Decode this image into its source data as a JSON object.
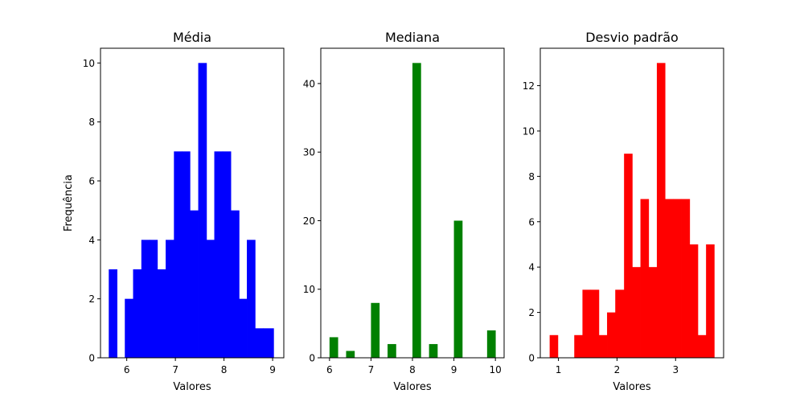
{
  "chart_data": [
    {
      "type": "bar",
      "title": "Média",
      "xlabel": "Valores",
      "ylabel": "Frequência",
      "color": "#0000ff",
      "xlim": [
        5.46,
        9.23
      ],
      "ylim": [
        0,
        10.5
      ],
      "xticks": [
        6,
        7,
        8,
        9
      ],
      "yticks": [
        0,
        2,
        4,
        6,
        8,
        10
      ],
      "bins": [
        {
          "x0": 5.63,
          "x1": 5.8,
          "count": 3
        },
        {
          "x0": 5.8,
          "x1": 5.96,
          "count": 0
        },
        {
          "x0": 5.96,
          "x1": 6.13,
          "count": 2
        },
        {
          "x0": 6.13,
          "x1": 6.3,
          "count": 3
        },
        {
          "x0": 6.3,
          "x1": 6.47,
          "count": 4
        },
        {
          "x0": 6.47,
          "x1": 6.63,
          "count": 4
        },
        {
          "x0": 6.63,
          "x1": 6.8,
          "count": 3
        },
        {
          "x0": 6.8,
          "x1": 6.97,
          "count": 4
        },
        {
          "x0": 6.97,
          "x1": 7.13,
          "count": 7
        },
        {
          "x0": 7.13,
          "x1": 7.3,
          "count": 7
        },
        {
          "x0": 7.3,
          "x1": 7.47,
          "count": 5
        },
        {
          "x0": 7.47,
          "x1": 7.64,
          "count": 10
        },
        {
          "x0": 7.64,
          "x1": 7.8,
          "count": 4
        },
        {
          "x0": 7.8,
          "x1": 7.97,
          "count": 7
        },
        {
          "x0": 7.97,
          "x1": 8.14,
          "count": 7
        },
        {
          "x0": 8.14,
          "x1": 8.31,
          "count": 5
        },
        {
          "x0": 8.31,
          "x1": 8.47,
          "count": 2
        },
        {
          "x0": 8.47,
          "x1": 8.64,
          "count": 4
        },
        {
          "x0": 8.64,
          "x1": 8.81,
          "count": 1
        },
        {
          "x0": 8.81,
          "x1": 9.02,
          "count": 1
        }
      ]
    },
    {
      "type": "bar",
      "title": "Mediana",
      "xlabel": "Valores",
      "ylabel": "",
      "color": "#008000",
      "xlim": [
        5.79,
        10.21
      ],
      "ylim": [
        0,
        45.15
      ],
      "xticks": [
        6,
        7,
        8,
        9,
        10
      ],
      "yticks": [
        0,
        10,
        20,
        30,
        40
      ],
      "bins": [
        {
          "x0": 6.0,
          "x1": 6.2,
          "count": 3
        },
        {
          "x0": 6.2,
          "x1": 6.4,
          "count": 0
        },
        {
          "x0": 6.4,
          "x1": 6.6,
          "count": 1
        },
        {
          "x0": 6.6,
          "x1": 6.8,
          "count": 0
        },
        {
          "x0": 6.8,
          "x1": 7.0,
          "count": 0
        },
        {
          "x0": 7.0,
          "x1": 7.2,
          "count": 8
        },
        {
          "x0": 7.2,
          "x1": 7.4,
          "count": 0
        },
        {
          "x0": 7.4,
          "x1": 7.6,
          "count": 2
        },
        {
          "x0": 7.6,
          "x1": 7.8,
          "count": 0
        },
        {
          "x0": 7.8,
          "x1": 8.0,
          "count": 0
        },
        {
          "x0": 8.0,
          "x1": 8.2,
          "count": 43
        },
        {
          "x0": 8.2,
          "x1": 8.4,
          "count": 0
        },
        {
          "x0": 8.4,
          "x1": 8.6,
          "count": 2
        },
        {
          "x0": 8.6,
          "x1": 8.8,
          "count": 0
        },
        {
          "x0": 8.8,
          "x1": 9.0,
          "count": 0
        },
        {
          "x0": 9.0,
          "x1": 9.2,
          "count": 20
        },
        {
          "x0": 9.2,
          "x1": 9.4,
          "count": 0
        },
        {
          "x0": 9.4,
          "x1": 9.6,
          "count": 0
        },
        {
          "x0": 9.6,
          "x1": 9.8,
          "count": 0
        },
        {
          "x0": 9.8,
          "x1": 10.0,
          "count": 4
        }
      ]
    },
    {
      "type": "bar",
      "title": "Desvio padrão",
      "xlabel": "Valores",
      "ylabel": "",
      "color": "#ff0000",
      "xlim": [
        0.69,
        3.82
      ],
      "ylim": [
        0,
        13.65
      ],
      "xticks": [
        1,
        2,
        3
      ],
      "yticks": [
        0,
        2,
        4,
        6,
        8,
        10,
        12
      ],
      "bins": [
        {
          "x0": 0.85,
          "x1": 0.99,
          "count": 1
        },
        {
          "x0": 0.99,
          "x1": 1.13,
          "count": 0
        },
        {
          "x0": 1.13,
          "x1": 1.27,
          "count": 0
        },
        {
          "x0": 1.27,
          "x1": 1.41,
          "count": 1
        },
        {
          "x0": 1.41,
          "x1": 1.55,
          "count": 3
        },
        {
          "x0": 1.55,
          "x1": 1.69,
          "count": 3
        },
        {
          "x0": 1.69,
          "x1": 1.83,
          "count": 1
        },
        {
          "x0": 1.83,
          "x1": 1.97,
          "count": 2
        },
        {
          "x0": 1.97,
          "x1": 2.12,
          "count": 3
        },
        {
          "x0": 2.12,
          "x1": 2.26,
          "count": 9
        },
        {
          "x0": 2.26,
          "x1": 2.4,
          "count": 4
        },
        {
          "x0": 2.4,
          "x1": 2.54,
          "count": 7
        },
        {
          "x0": 2.54,
          "x1": 2.68,
          "count": 4
        },
        {
          "x0": 2.68,
          "x1": 2.82,
          "count": 13
        },
        {
          "x0": 2.82,
          "x1": 2.96,
          "count": 7
        },
        {
          "x0": 2.96,
          "x1": 3.1,
          "count": 7
        },
        {
          "x0": 3.1,
          "x1": 3.24,
          "count": 7
        },
        {
          "x0": 3.24,
          "x1": 3.38,
          "count": 5
        },
        {
          "x0": 3.38,
          "x1": 3.52,
          "count": 1
        },
        {
          "x0": 3.52,
          "x1": 3.66,
          "count": 5
        }
      ]
    }
  ]
}
